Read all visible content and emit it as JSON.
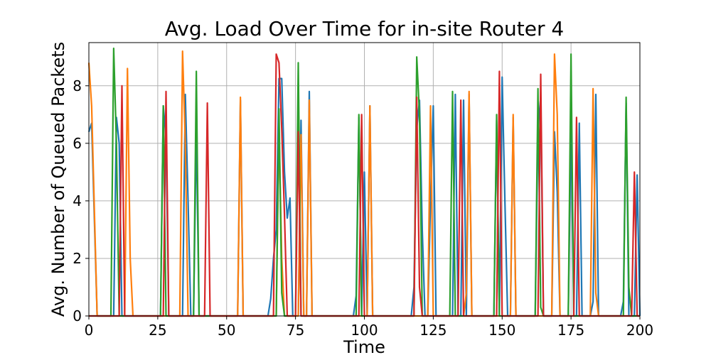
{
  "chart_data": {
    "type": "line",
    "title": "Avg. Load Over Time for in-site Router 4",
    "xlabel": "Time",
    "ylabel": "Avg. Number of Queued Packets",
    "xlim": [
      0,
      200
    ],
    "ylim": [
      0,
      9.5
    ],
    "xticks": [
      0,
      25,
      50,
      75,
      100,
      125,
      150,
      175,
      200
    ],
    "yticks": [
      0,
      2,
      4,
      6,
      8
    ],
    "grid": true,
    "series": [
      {
        "color": "#1f77b4",
        "points": [
          [
            0,
            6.4
          ],
          [
            1,
            6.7
          ],
          [
            3,
            0
          ],
          [
            8,
            0
          ],
          [
            9,
            0
          ],
          [
            10,
            6.9
          ],
          [
            11,
            6
          ],
          [
            12,
            0
          ],
          [
            25,
            0
          ],
          [
            26,
            0
          ],
          [
            27,
            7.3
          ],
          [
            28,
            6.2
          ],
          [
            29,
            0
          ],
          [
            33,
            0
          ],
          [
            34,
            0
          ],
          [
            35,
            7.7
          ],
          [
            36,
            4
          ],
          [
            37,
            0
          ],
          [
            38,
            0
          ],
          [
            39,
            6.6
          ],
          [
            40,
            0
          ],
          [
            54,
            0
          ],
          [
            55,
            7.5
          ],
          [
            56,
            0
          ],
          [
            65,
            0
          ],
          [
            66,
            0.6
          ],
          [
            67,
            2
          ],
          [
            68,
            3
          ],
          [
            69,
            8.25
          ],
          [
            70,
            8.25
          ],
          [
            71,
            5
          ],
          [
            72,
            3.4
          ],
          [
            73,
            4.1
          ],
          [
            74,
            0
          ],
          [
            76,
            0
          ],
          [
            77,
            6.8
          ],
          [
            78,
            0
          ],
          [
            79,
            0
          ],
          [
            80,
            7.8
          ],
          [
            81,
            0
          ],
          [
            96,
            0
          ],
          [
            97,
            0.7
          ],
          [
            98,
            6.9
          ],
          [
            99,
            0
          ],
          [
            100,
            5
          ],
          [
            101,
            0
          ],
          [
            102,
            7.3
          ],
          [
            103,
            0
          ],
          [
            117,
            0
          ],
          [
            118,
            1
          ],
          [
            119,
            6.5
          ],
          [
            120,
            7.5
          ],
          [
            121,
            3
          ],
          [
            122,
            0
          ],
          [
            123,
            0
          ],
          [
            124,
            4
          ],
          [
            125,
            7.3
          ],
          [
            126,
            0
          ],
          [
            132,
            0
          ],
          [
            133,
            7.7
          ],
          [
            134,
            0
          ],
          [
            135,
            0
          ],
          [
            136,
            7.5
          ],
          [
            137,
            0
          ],
          [
            138,
            7.7
          ],
          [
            139,
            0
          ],
          [
            147,
            0
          ],
          [
            148,
            6.8
          ],
          [
            149,
            0
          ],
          [
            150,
            8.3
          ],
          [
            151,
            4
          ],
          [
            152,
            0
          ],
          [
            153,
            0
          ],
          [
            154,
            6.9
          ],
          [
            155,
            0
          ],
          [
            162,
            0
          ],
          [
            163,
            6.5
          ],
          [
            164,
            7.6
          ],
          [
            165,
            0
          ],
          [
            166,
            0
          ],
          [
            167,
            0
          ],
          [
            168,
            0
          ],
          [
            169,
            6.4
          ],
          [
            170,
            4.3
          ],
          [
            171,
            0
          ],
          [
            174,
            0
          ],
          [
            175,
            6.7
          ],
          [
            176,
            0
          ],
          [
            177,
            0
          ],
          [
            178,
            6.7
          ],
          [
            179,
            0
          ],
          [
            182,
            0
          ],
          [
            183,
            0.5
          ],
          [
            184,
            7.7
          ],
          [
            185,
            0
          ],
          [
            193,
            0
          ],
          [
            194,
            0.5
          ],
          [
            195,
            7.4
          ],
          [
            196,
            0
          ],
          [
            198,
            0
          ],
          [
            199,
            4.9
          ],
          [
            200,
            0
          ]
        ]
      },
      {
        "color": "#ff7f0e",
        "points": [
          [
            0,
            8.8
          ],
          [
            1,
            7.3
          ],
          [
            3,
            0
          ],
          [
            13,
            0
          ],
          [
            14,
            8.6
          ],
          [
            15,
            2
          ],
          [
            16,
            0
          ],
          [
            33,
            0
          ],
          [
            34,
            9.2
          ],
          [
            35,
            6
          ],
          [
            36,
            0
          ],
          [
            54,
            0
          ],
          [
            55,
            7.6
          ],
          [
            56,
            0
          ],
          [
            68,
            0
          ],
          [
            69,
            6.6
          ],
          [
            70,
            2
          ],
          [
            71,
            0
          ],
          [
            76,
            0
          ],
          [
            77,
            6.3
          ],
          [
            78,
            0
          ],
          [
            79,
            0
          ],
          [
            80,
            7.5
          ],
          [
            81,
            0
          ],
          [
            101,
            0
          ],
          [
            102,
            7.3
          ],
          [
            103,
            0
          ],
          [
            123,
            0
          ],
          [
            124,
            7.3
          ],
          [
            125,
            0
          ],
          [
            136,
            0
          ],
          [
            137,
            0.8
          ],
          [
            138,
            7.8
          ],
          [
            139,
            0
          ],
          [
            153,
            0
          ],
          [
            154,
            7
          ],
          [
            155,
            0
          ],
          [
            168,
            0
          ],
          [
            169,
            9.1
          ],
          [
            170,
            7
          ],
          [
            171,
            0
          ],
          [
            182,
            0
          ],
          [
            183,
            7.9
          ],
          [
            184,
            0.8
          ],
          [
            185,
            0
          ],
          [
            200,
            0
          ]
        ]
      },
      {
        "color": "#2ca02c",
        "points": [
          [
            0,
            0
          ],
          [
            8,
            0
          ],
          [
            9,
            9.3
          ],
          [
            10,
            6
          ],
          [
            11,
            0
          ],
          [
            26,
            0
          ],
          [
            27,
            7.3
          ],
          [
            28,
            0
          ],
          [
            38,
            0
          ],
          [
            39,
            8.5
          ],
          [
            40,
            0
          ],
          [
            68,
            0
          ],
          [
            69,
            7.2
          ],
          [
            70,
            0.8
          ],
          [
            71,
            0
          ],
          [
            75,
            0
          ],
          [
            76,
            8.8
          ],
          [
            77,
            0
          ],
          [
            97,
            0
          ],
          [
            98,
            7
          ],
          [
            99,
            0
          ],
          [
            118,
            0
          ],
          [
            119,
            9
          ],
          [
            120,
            7
          ],
          [
            121,
            0
          ],
          [
            131,
            0
          ],
          [
            132,
            7.8
          ],
          [
            133,
            0
          ],
          [
            147,
            0
          ],
          [
            148,
            7
          ],
          [
            149,
            0
          ],
          [
            162,
            0
          ],
          [
            163,
            7.9
          ],
          [
            164,
            0.3
          ],
          [
            165,
            0
          ],
          [
            174,
            0
          ],
          [
            175,
            9.1
          ],
          [
            176,
            0
          ],
          [
            194,
            0
          ],
          [
            195,
            7.6
          ],
          [
            196,
            1
          ],
          [
            197,
            0
          ],
          [
            200,
            0
          ]
        ]
      },
      {
        "color": "#d62728",
        "points": [
          [
            0,
            0
          ],
          [
            11,
            0
          ],
          [
            12,
            8
          ],
          [
            13,
            0
          ],
          [
            27,
            0
          ],
          [
            28,
            7.8
          ],
          [
            29,
            0
          ],
          [
            42,
            0
          ],
          [
            43,
            7.4
          ],
          [
            44,
            0
          ],
          [
            67,
            0
          ],
          [
            68,
            9.1
          ],
          [
            69,
            8.8
          ],
          [
            70,
            6.5
          ],
          [
            71,
            3.5
          ],
          [
            72,
            0
          ],
          [
            75,
            0
          ],
          [
            76,
            6.4
          ],
          [
            77,
            0
          ],
          [
            98,
            0
          ],
          [
            99,
            7
          ],
          [
            100,
            0
          ],
          [
            118,
            0
          ],
          [
            119,
            7.6
          ],
          [
            120,
            1
          ],
          [
            121,
            0
          ],
          [
            134,
            0
          ],
          [
            135,
            7.5
          ],
          [
            136,
            0
          ],
          [
            148,
            0
          ],
          [
            149,
            8.5
          ],
          [
            150,
            0
          ],
          [
            163,
            0
          ],
          [
            164,
            8.4
          ],
          [
            165,
            0
          ],
          [
            176,
            0
          ],
          [
            177,
            6.9
          ],
          [
            178,
            0
          ],
          [
            197,
            0
          ],
          [
            198,
            5
          ],
          [
            199,
            0
          ],
          [
            200,
            0
          ]
        ]
      }
    ]
  }
}
